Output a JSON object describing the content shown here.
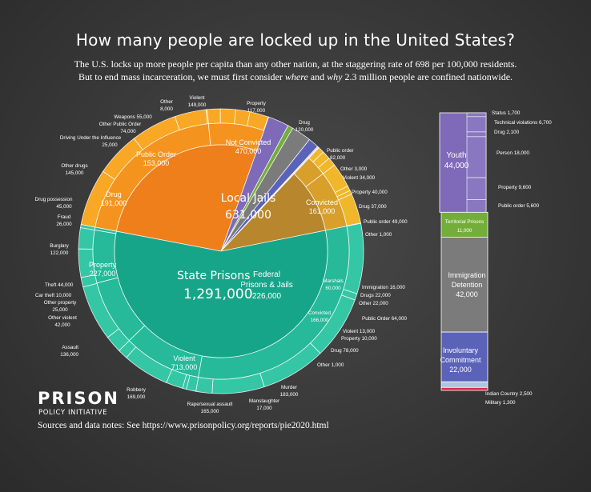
{
  "title": "How many people are locked up in the United States?",
  "subtitle_line1": "The U.S. locks up more people per capita than any other nation, at the staggering rate of 698 per 100,000 residents.",
  "subtitle_line2_parts": [
    "But to end mass incarceration, we must first consider ",
    "where",
    " and ",
    "why",
    " 2.3 million people are confined nationwide."
  ],
  "logo": {
    "line1": "PRISON",
    "line2": "POLICY INITIATIVE"
  },
  "sources": "Sources and data notes: See https://www.prisonpolicy.org/reports/pie2020.html",
  "colors": {
    "state": "#17a589",
    "state_mid": "#26b99a",
    "state_outer": "#35c7a5",
    "jail": "#ee7f1a",
    "jail_mid": "#f4931d",
    "jail_outer": "#f9a825",
    "federal": "#b8862c",
    "federal_mid": "#d89f2b",
    "federal_outer": "#f0b72a",
    "youth": "#7e6ab8",
    "territorial": "#74ad3a",
    "immigration": "#7b7b7b",
    "involuntary": "#5b63b8",
    "indian": "#b0c4de",
    "military": "#e0254c"
  },
  "chart_data": {
    "type": "pie",
    "total": 2300000,
    "facilities": [
      {
        "name": "State Prisons",
        "value": 1291000,
        "label": "1,291,000"
      },
      {
        "name": "Local Jails",
        "value": 631000,
        "label": "631,000"
      },
      {
        "name": "Federal Prisons & Jails",
        "value": 226000,
        "label": "226,000"
      },
      {
        "name": "Youth",
        "value": 44000,
        "label": "44,000"
      },
      {
        "name": "Territorial Prisons",
        "value": 11000,
        "label": "11,000"
      },
      {
        "name": "Immigration Detention",
        "value": 42000,
        "label": "42,000"
      },
      {
        "name": "Involuntary Commitment",
        "value": 22000,
        "label": "22,000"
      },
      {
        "name": "Indian Country",
        "value": 2500,
        "label": "2,500"
      },
      {
        "name": "Military",
        "value": 1300,
        "label": "1,300"
      }
    ],
    "middle_ring": [
      {
        "name": "Violent",
        "value": 713000,
        "label": "713,000",
        "group": "state"
      },
      {
        "name": "Property",
        "value": 227000,
        "label": "227,000",
        "group": "state"
      },
      {
        "name": "Drug",
        "value": 191000,
        "label": "191,000",
        "group": "state"
      },
      {
        "name": "Public Order",
        "value": 153000,
        "label": "153,000",
        "group": "state"
      },
      {
        "name": "Other",
        "value": 8000,
        "label": "8,000",
        "group": "state"
      },
      {
        "name": "Not Convicted",
        "value": 470000,
        "label": "470,000",
        "group": "jail"
      },
      {
        "name": "Convicted",
        "value": 161000,
        "label": "161,000",
        "group": "jail"
      },
      {
        "name": "Marshals",
        "value": 60000,
        "label": "60,000",
        "group": "federal"
      },
      {
        "name": "Convicted",
        "value": 166000,
        "label": "166,000",
        "group": "federal"
      }
    ],
    "outer_ring": [
      {
        "name": "Murder",
        "value": 183000,
        "group": "state"
      },
      {
        "name": "Manslaughter",
        "value": 17000,
        "group": "state"
      },
      {
        "name": "Rape/sexual assault",
        "value": 165000,
        "group": "state"
      },
      {
        "name": "Robbery",
        "value": 169000,
        "group": "state"
      },
      {
        "name": "Assault",
        "value": 136000,
        "group": "state"
      },
      {
        "name": "Other violent",
        "value": 42000,
        "group": "state"
      },
      {
        "name": "Other property",
        "value": 25000,
        "group": "state"
      },
      {
        "name": "Car theft",
        "value": 10000,
        "group": "state"
      },
      {
        "name": "Theft",
        "value": 44000,
        "group": "state"
      },
      {
        "name": "Burglary",
        "value": 122000,
        "group": "state"
      },
      {
        "name": "Fraud",
        "value": 26000,
        "group": "state"
      },
      {
        "name": "Drug possession",
        "value": 45000,
        "group": "state"
      },
      {
        "name": "Other drugs",
        "value": 145000,
        "group": "state"
      },
      {
        "name": "Driving Under the Influence",
        "value": 25000,
        "group": "state"
      },
      {
        "name": "Other Public Order",
        "value": 74000,
        "group": "state"
      },
      {
        "name": "Weapons",
        "value": 55000,
        "group": "state"
      },
      {
        "name": "Other",
        "value": 8000,
        "group": "state"
      },
      {
        "name": "Violent",
        "value": 149000,
        "group": "jail"
      },
      {
        "name": "Property",
        "value": 117000,
        "group": "jail"
      },
      {
        "name": "Drug",
        "value": 120000,
        "group": "jail"
      },
      {
        "name": "Public order",
        "value": 82000,
        "group": "jail"
      },
      {
        "name": "Other",
        "value": 3000,
        "group": "jail"
      },
      {
        "name": "Violent",
        "value": 34000,
        "group": "jail"
      },
      {
        "name": "Property",
        "value": 40000,
        "group": "jail"
      },
      {
        "name": "Drug",
        "value": 37000,
        "group": "jail"
      },
      {
        "name": "Public order",
        "value": 49000,
        "group": "jail"
      },
      {
        "name": "Other",
        "value": 1000,
        "group": "jail"
      },
      {
        "name": "Immigration",
        "value": 16000,
        "group": "federal"
      },
      {
        "name": "Drugs",
        "value": 22000,
        "group": "federal"
      },
      {
        "name": "Other",
        "value": 22000,
        "group": "federal"
      },
      {
        "name": "Public Order",
        "value": 64000,
        "group": "federal"
      },
      {
        "name": "Violent",
        "value": 13000,
        "group": "federal"
      },
      {
        "name": "Property",
        "value": 10000,
        "group": "federal"
      },
      {
        "name": "Drug",
        "value": 78000,
        "group": "federal"
      },
      {
        "name": "Other",
        "value": 1000,
        "group": "federal"
      }
    ],
    "youth_breakdown": [
      {
        "name": "Status",
        "value": 1700
      },
      {
        "name": "Technical violations",
        "value": 6700
      },
      {
        "name": "Drug",
        "value": 2100
      },
      {
        "name": "Person",
        "value": 18000
      },
      {
        "name": "Property",
        "value": 9600
      },
      {
        "name": "Public order",
        "value": 5600
      }
    ],
    "labels": {
      "state_name": "State Prisons",
      "state_value": "1,291,000",
      "jail_name": "Local Jails",
      "jail_value": "631,000",
      "fed_name1": "Federal",
      "fed_name2": "Prisons & Jails",
      "fed_value": "226,000",
      "violent": "Violent",
      "violent_v": "713,000",
      "property": "Property",
      "property_v": "227,000",
      "drug": "Drug",
      "drug_v": "191,000",
      "public_order": "Public Order",
      "public_order_v": "153,000",
      "not_convicted": "Not Convicted",
      "not_convicted_v": "470,000",
      "convicted": "Convicted",
      "convicted_v": "161,000",
      "marshals": "Marshals",
      "marshals_v": "60,000",
      "fconvicted": "Convicted",
      "fconvicted_v": "166,000",
      "o_other": "Other",
      "o_other_v": "8,000",
      "o_violent": "Violent",
      "o_violent_v": "149,000",
      "o_property": "Property",
      "o_property_v": "117,000",
      "o_drug": "Drug",
      "o_drug_v": "120,000",
      "o_puborder": "Public order",
      "o_puborder_v": "82,000",
      "o_other3": "Other 3,000",
      "o_violent34": "Violent 34,000",
      "o_property40": "Property 40,000",
      "o_drug37": "Drug 37,000",
      "o_puborder49": "Public order 49,000",
      "o_other1": "Other 1,000",
      "o_immig": "Immigration 16,000",
      "o_drugs22": "Drugs 22,000",
      "o_other22": "Other 22,000",
      "o_pub64": "Public Order 64,000",
      "o_violent13": "Violent 13,000",
      "o_property10": "Property 10,000",
      "o_drug78": "Drug 78,000",
      "o_other1b": "Other 1,000",
      "o_murder": "Murder",
      "o_murder_v": "183,000",
      "o_mansl": "Manslaughter",
      "o_mansl_v": "17,000",
      "o_rape": "Rape/sexual assault",
      "o_rape_v": "165,000",
      "o_robbery": "Robbery",
      "o_robbery_v": "169,000",
      "o_assault": "Assault",
      "o_assault_v": "136,000",
      "o_othviol": "Other violent",
      "o_othviol_v": "42,000",
      "o_othprop": "Other property",
      "o_othprop_v": "25,000",
      "o_car": "Car theft 10,000",
      "o_theft": "Theft 44,000",
      "o_burg": "Burglary",
      "o_burg_v": "122,000",
      "o_fraud": "Fraud",
      "o_fraud_v": "26,000",
      "o_drugposs": "Drug possession",
      "o_drugposs_v": "45,000",
      "o_othdrugs": "Other drugs",
      "o_othdrugs_v": "145,000",
      "o_dui": "Driving Under the Influence",
      "o_dui_v": "25,000",
      "o_othpub": "Other Public Order",
      "o_othpub_v": "74,000",
      "o_weapons": "Weapons 55,000",
      "youth": "Youth",
      "youth_v": "44,000",
      "y_status": "Status 1,700",
      "y_tech": "Technical violations 6,700",
      "y_drug": "Drug 2,100",
      "y_person": "Person 18,000",
      "y_property": "Property 9,600",
      "y_puborder": "Public order 5,600",
      "territorial": "Territorial Prisons",
      "territorial_v": "11,000",
      "immigration1": "Immigration",
      "immigration2": "Detention",
      "immigration_v": "42,000",
      "invol1": "Involuntary",
      "invol2": "Commitment",
      "invol_v": "22,000",
      "indian": "Indian Country 2,500",
      "military": "Military 1,300"
    }
  }
}
